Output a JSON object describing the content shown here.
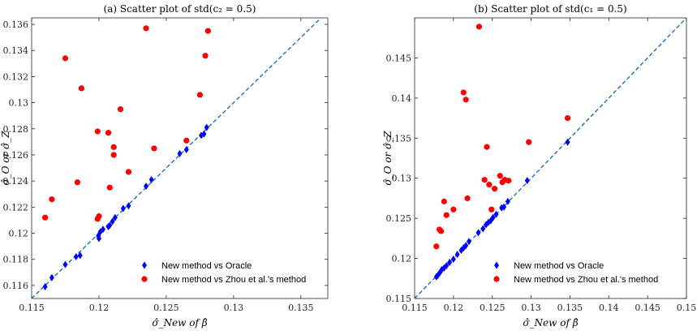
{
  "chart_data": [
    {
      "type": "scatter",
      "title": "(a) Scatter plot of std(c₂ = 0.5)",
      "xlabel": "σ̂_New of β̂",
      "ylabel": "σ̂_O or σ̂_Z",
      "xlim": [
        0.115,
        0.137
      ],
      "ylim": [
        0.115,
        0.1365
      ],
      "xticks": [
        "0.115",
        "0.12",
        "0.125",
        "0.13",
        "0.135"
      ],
      "xtick_values": [
        0.115,
        0.12,
        0.125,
        0.13,
        0.135
      ],
      "yticks": [
        "0.116",
        "0.118",
        "0.12",
        "0.122",
        "0.124",
        "0.126",
        "0.128",
        "0.13",
        "0.132",
        "0.134",
        "0.136"
      ],
      "ytick_values": [
        0.116,
        0.118,
        0.12,
        0.122,
        0.124,
        0.126,
        0.128,
        0.13,
        0.132,
        0.134,
        0.136
      ],
      "legend_position": "bottom-right",
      "reference_line": "y = x",
      "series": [
        {
          "name": "New method vs Oracle",
          "color": "#0000ff",
          "marker": "diamond",
          "x": [
            0.116,
            0.1165,
            0.1175,
            0.1183,
            0.1186,
            0.11995,
            0.1201,
            0.12,
            0.1203,
            0.1207,
            0.1208,
            0.121,
            0.1212,
            0.1218,
            0.1222,
            0.1235,
            0.1239,
            0.126,
            0.1265,
            0.1276,
            0.1278,
            0.128
          ],
          "y": [
            0.1159,
            0.1166,
            0.1176,
            0.1182,
            0.1183,
            0.1198,
            0.1201,
            0.1196,
            0.1203,
            0.1205,
            0.1206,
            0.1209,
            0.1212,
            0.1219,
            0.1221,
            0.1236,
            0.1241,
            0.1261,
            0.1264,
            0.1275,
            0.1276,
            0.1281
          ]
        },
        {
          "name": "New method vs Zhou et al.'s method",
          "color": "#ff0000",
          "marker": "circle",
          "x": [
            0.116,
            0.1165,
            0.1175,
            0.1184,
            0.1187,
            0.1199,
            0.12,
            0.1199,
            0.1207,
            0.1208,
            0.1211,
            0.1211,
            0.1216,
            0.1222,
            0.1235,
            0.1241,
            0.1265,
            0.1275,
            0.1279,
            0.1281
          ],
          "y": [
            0.1212,
            0.1226,
            0.1334,
            0.1239,
            0.1311,
            0.1278,
            0.1213,
            0.1211,
            0.1277,
            0.1235,
            0.1266,
            0.126,
            0.1295,
            0.1247,
            0.1357,
            0.1265,
            0.1271,
            0.1306,
            0.1336,
            0.1355
          ]
        }
      ]
    },
    {
      "type": "scatter",
      "title": "(b) Scatter plot of std(c₁ = 0.5)",
      "xlabel": "σ̂_New of β̂",
      "ylabel": "σ̂_O or σ̂_Z",
      "xlim": [
        0.115,
        0.15
      ],
      "ylim": [
        0.115,
        0.15
      ],
      "xticks": [
        "0.115",
        "0.12",
        "0.125",
        "0.13",
        "0.135",
        "0.14",
        "0.145",
        "0.15"
      ],
      "xtick_values": [
        0.115,
        0.12,
        0.125,
        0.13,
        0.135,
        0.14,
        0.145,
        0.15
      ],
      "yticks": [
        "0.115",
        "0.12",
        "0.125",
        "0.13",
        "0.135",
        "0.14",
        "0.145"
      ],
      "ytick_values": [
        0.115,
        0.12,
        0.125,
        0.13,
        0.135,
        0.14,
        0.145
      ],
      "legend_position": "bottom-right",
      "reference_line": "y = x",
      "series": [
        {
          "name": "New method vs Oracle",
          "color": "#0000ff",
          "marker": "diamond",
          "x": [
            0.1178,
            0.118,
            0.1183,
            0.1185,
            0.1188,
            0.1191,
            0.1195,
            0.12,
            0.1205,
            0.121,
            0.1213,
            0.1216,
            0.122,
            0.1232,
            0.1238,
            0.1242,
            0.1245,
            0.1248,
            0.1251,
            0.1255,
            0.1262,
            0.1265,
            0.127,
            0.1295,
            0.1347
          ],
          "y": [
            0.1177,
            0.1179,
            0.1183,
            0.1186,
            0.1188,
            0.1191,
            0.1195,
            0.1199,
            0.1205,
            0.121,
            0.1213,
            0.1216,
            0.1221,
            0.1232,
            0.1237,
            0.1242,
            0.1245,
            0.1247,
            0.1251,
            0.1255,
            0.1263,
            0.1264,
            0.1271,
            0.1297,
            0.1345
          ]
        },
        {
          "name": "New method vs Zhou et al.'s method",
          "color": "#ff0000",
          "marker": "circle",
          "x": [
            0.1178,
            0.1182,
            0.1184,
            0.1188,
            0.1191,
            0.12,
            0.1213,
            0.1216,
            0.1218,
            0.1233,
            0.124,
            0.1243,
            0.1246,
            0.1249,
            0.1253,
            0.126,
            0.1263,
            0.1266,
            0.1271,
            0.1297,
            0.1347
          ],
          "y": [
            0.1215,
            0.1236,
            0.1234,
            0.1271,
            0.1254,
            0.1261,
            0.1407,
            0.1398,
            0.1275,
            0.1489,
            0.1298,
            0.1339,
            0.1292,
            0.1261,
            0.1287,
            0.1303,
            0.1295,
            0.1298,
            0.1297,
            0.1345,
            0.1375
          ]
        }
      ]
    }
  ]
}
